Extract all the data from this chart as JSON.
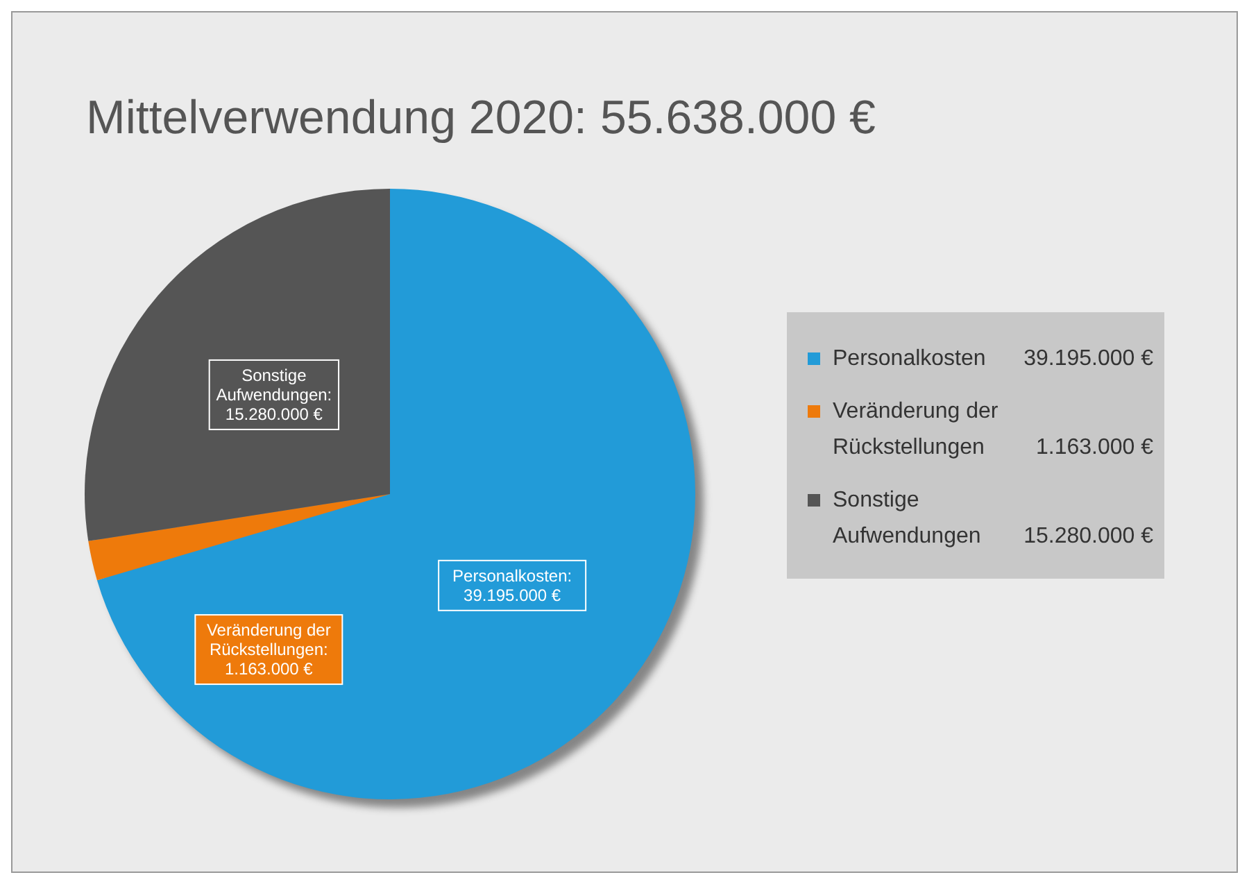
{
  "chart_data": {
    "type": "pie",
    "title": "Mittelverwendung 2020: 55.638.000 €",
    "categories": [
      "Personalkosten",
      "Veränderung der Rückstellungen",
      "Sonstige Aufwendungen"
    ],
    "values": [
      39195000,
      1163000,
      15280000
    ],
    "colors": [
      "#229bd8",
      "#ee7a0b",
      "#555555"
    ],
    "value_labels": [
      "39.195.000 €",
      "1.163.000 €",
      "15.280.000 €"
    ],
    "annotations": [
      "Personalkosten:\n39.195.000 €",
      "Veränderung der\nRückstellungen:\n1.163.000 €",
      "Sonstige\nAufwendungen:\n15.280.000 €"
    ],
    "legend": "right"
  }
}
